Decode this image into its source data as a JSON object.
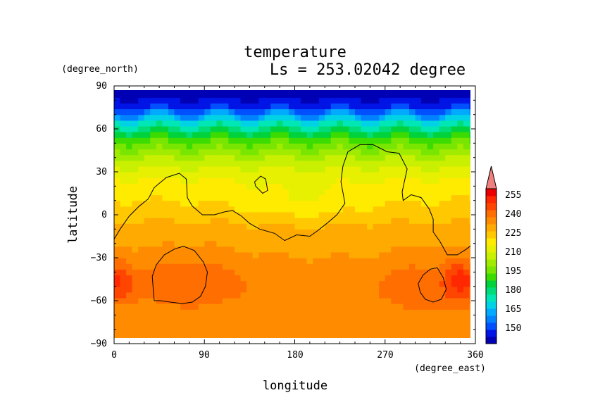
{
  "chart_data": {
    "type": "heatmap",
    "title": "temperature",
    "subtitle": "Ls = 253.02042 degree",
    "xlabel": "longitude",
    "ylabel": "latitude",
    "xunit": "(degree_east)",
    "yunit": "(degree_north)",
    "xlim": [
      0,
      360
    ],
    "ylim": [
      -90,
      90
    ],
    "x_ticks": [
      "0",
      "90",
      "180",
      "270",
      "360"
    ],
    "y_ticks": [
      "90",
      "60",
      "30",
      "0",
      "−30",
      "−60",
      "−90"
    ],
    "colorbar": {
      "labels": [
        "255",
        "240",
        "225",
        "210",
        "195",
        "180",
        "165",
        "150"
      ],
      "levels": [
        140,
        145,
        150,
        155,
        160,
        165,
        170,
        175,
        180,
        185,
        190,
        195,
        200,
        205,
        210,
        215,
        220,
        225,
        230,
        235,
        240,
        245,
        250,
        255,
        260
      ],
      "colors": [
        "#0000b4",
        "#0014e6",
        "#0050ff",
        "#0082ff",
        "#00aaff",
        "#00d2e6",
        "#00e6b4",
        "#00dc78",
        "#00d23c",
        "#3cdc00",
        "#78e600",
        "#a0eb00",
        "#c8f000",
        "#e6f000",
        "#ffeb00",
        "#ffc800",
        "#ffaa00",
        "#ff8c00",
        "#ff6e00",
        "#ff4600",
        "#ff2800",
        "#eb0000"
      ],
      "extend_top_color": "#f08080"
    },
    "grid": false,
    "field_profile": [
      {
        "lat": 85,
        "value": 142
      },
      {
        "lat": 75,
        "value": 150
      },
      {
        "lat": 65,
        "value": 170
      },
      {
        "lat": 55,
        "value": 185
      },
      {
        "lat": 45,
        "value": 196
      },
      {
        "lat": 35,
        "value": 204
      },
      {
        "lat": 25,
        "value": 210
      },
      {
        "lat": 15,
        "value": 214
      },
      {
        "lat": 5,
        "value": 216
      },
      {
        "lat": -5,
        "value": 220
      },
      {
        "lat": -15,
        "value": 223
      },
      {
        "lat": -25,
        "value": 224
      },
      {
        "lat": -35,
        "value": 226
      },
      {
        "lat": -45,
        "value": 228
      },
      {
        "lat": -55,
        "value": 228
      },
      {
        "lat": -65,
        "value": 227
      },
      {
        "lat": -75,
        "value": 226
      },
      {
        "lat": -85,
        "value": 226
      }
    ],
    "anomalies": [
      {
        "lon": 5,
        "lat": -45,
        "dlon": 14,
        "dlat": 14,
        "dvalue": 12
      },
      {
        "lon": 345,
        "lat": -45,
        "dlon": 14,
        "dlat": 14,
        "dvalue": 12
      },
      {
        "lon": 75,
        "lat": -45,
        "dlon": 55,
        "dlat": 22,
        "dvalue": 6
      },
      {
        "lon": 310,
        "lat": -50,
        "dlon": 45,
        "dlat": 22,
        "dvalue": 6
      },
      {
        "lon": 185,
        "lat": 10,
        "dlon": 55,
        "dlat": 14,
        "dvalue": -5
      }
    ],
    "contours": [
      [
        [
          0,
          -17
        ],
        [
          6,
          -10
        ],
        [
          15,
          -1
        ],
        [
          25,
          6
        ],
        [
          34,
          11
        ],
        [
          40,
          19
        ],
        [
          52,
          26
        ],
        [
          65,
          29
        ],
        [
          72,
          25
        ],
        [
          73,
          12
        ],
        [
          78,
          6
        ],
        [
          88,
          0
        ],
        [
          100,
          0
        ],
        [
          110,
          2
        ],
        [
          118,
          3
        ],
        [
          127,
          -1
        ],
        [
          135,
          -6
        ],
        [
          145,
          -10
        ],
        [
          160,
          -13
        ],
        [
          170,
          -18
        ],
        [
          182,
          -14
        ],
        [
          195,
          -15
        ],
        [
          203,
          -11
        ],
        [
          212,
          -6
        ],
        [
          222,
          0
        ],
        [
          230,
          8
        ],
        [
          226,
          23
        ],
        [
          228,
          34
        ],
        [
          233,
          44
        ],
        [
          245,
          49
        ],
        [
          258,
          49
        ],
        [
          272,
          44
        ],
        [
          284,
          43
        ],
        [
          292,
          32
        ],
        [
          287,
          16
        ],
        [
          288,
          10
        ],
        [
          296,
          14
        ],
        [
          306,
          12
        ],
        [
          314,
          4
        ],
        [
          318,
          -3
        ],
        [
          318,
          -12
        ],
        [
          325,
          -19
        ],
        [
          332,
          -28
        ],
        [
          342,
          -28
        ],
        [
          351,
          -24
        ],
        [
          360,
          -19
        ]
      ],
      [
        [
          140,
          23
        ],
        [
          146,
          27
        ],
        [
          151,
          25
        ],
        [
          153,
          17
        ],
        [
          148,
          15
        ],
        [
          141,
          20
        ],
        [
          140,
          23
        ]
      ],
      [
        [
          40,
          -60
        ],
        [
          39,
          -52
        ],
        [
          38,
          -43
        ],
        [
          42,
          -35
        ],
        [
          50,
          -28
        ],
        [
          60,
          -24
        ],
        [
          69,
          -22
        ],
        [
          80,
          -25
        ],
        [
          89,
          -33
        ],
        [
          93,
          -40
        ],
        [
          91,
          -50
        ],
        [
          86,
          -57
        ],
        [
          78,
          -61
        ],
        [
          68,
          -62
        ],
        [
          56,
          -61
        ],
        [
          46,
          -60
        ],
        [
          40,
          -60
        ]
      ],
      [
        [
          305,
          -54
        ],
        [
          303,
          -48
        ],
        [
          308,
          -42
        ],
        [
          315,
          -38
        ],
        [
          322,
          -37
        ],
        [
          328,
          -44
        ],
        [
          331,
          -52
        ],
        [
          326,
          -59
        ],
        [
          318,
          -61
        ],
        [
          310,
          -59
        ],
        [
          305,
          -54
        ]
      ]
    ]
  }
}
